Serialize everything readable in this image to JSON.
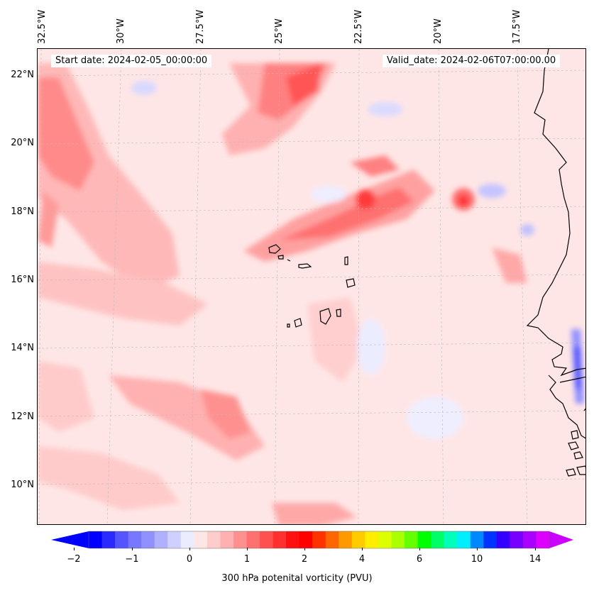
{
  "map": {
    "start_date": "Start date: 2024-02-05_00:00:00",
    "valid_date": "Valid_date: 2024-02-06T07:00:00.00",
    "lon_labels": [
      "32.5°W",
      "30°W",
      "27.5°W",
      "25°W",
      "22.5°W",
      "20°W",
      "17.5°W"
    ],
    "lat_labels": [
      "22°N",
      "20°N",
      "18°N",
      "16°N",
      "14°N",
      "12°N",
      "10°N"
    ],
    "colors": {
      "ocean_bg": "#ffe6e6",
      "coast": "#000000",
      "grid": "#bbbbbb"
    }
  },
  "colorbar": {
    "label": "300 hPa potenital vorticity (PVU)",
    "tick_labels": [
      "−2",
      "−1",
      "0",
      "1",
      "2",
      "4",
      "6",
      "10",
      "14"
    ],
    "colors": [
      "#0000ff",
      "#2a2aff",
      "#5555ff",
      "#7777ff",
      "#9090ff",
      "#b0b0ff",
      "#d0d0ff",
      "#ececff",
      "#ffe6e6",
      "#ffcccc",
      "#ffb0b0",
      "#ff9090",
      "#ff7070",
      "#ff5050",
      "#ff3030",
      "#ff1010",
      "#ff0000",
      "#ff3300",
      "#ff6600",
      "#ff9900",
      "#ffcc00",
      "#ffee00",
      "#ddff00",
      "#aaff00",
      "#66ff00",
      "#00ff00",
      "#00ff66",
      "#00ffbb",
      "#00eeff",
      "#0088ff",
      "#0033ff",
      "#3300ff",
      "#7700ff",
      "#aa00ff",
      "#dd00ff"
    ]
  }
}
